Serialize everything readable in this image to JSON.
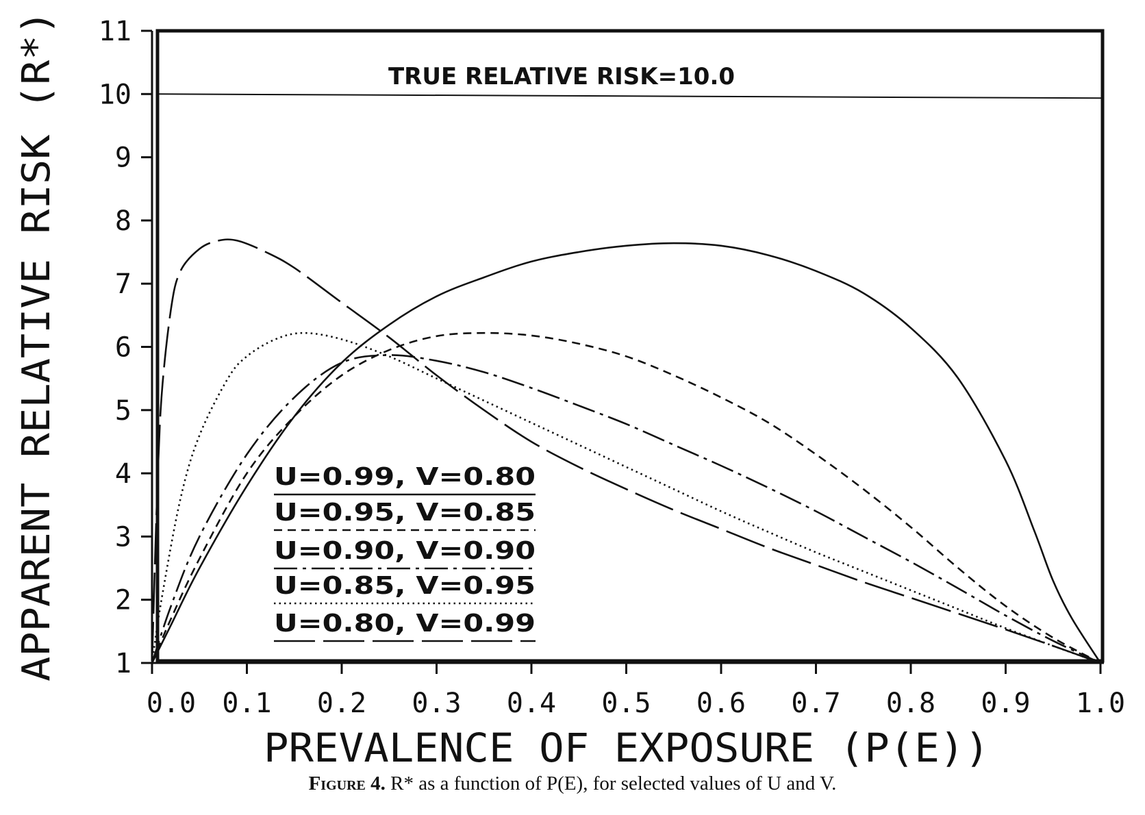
{
  "chart_data": {
    "type": "line",
    "title": "",
    "xlabel": "PREVALENCE OF EXPOSURE (P(E))",
    "ylabel": "APPARENT RELATIVE RISK (R*)",
    "xlim": [
      0.0,
      1.0
    ],
    "ylim": [
      1,
      11
    ],
    "xticks": [
      "0.0",
      "0.1",
      "0.2",
      "0.3",
      "0.4",
      "0.5",
      "0.6",
      "0.7",
      "0.8",
      "0.9",
      "1.0"
    ],
    "yticks": [
      "1",
      "2",
      "3",
      "4",
      "5",
      "6",
      "7",
      "8",
      "9",
      "10",
      "11"
    ],
    "reference_line": {
      "y": 10,
      "label": "TRUE RELATIVE RISK=10.0"
    },
    "grid": false,
    "legend_position": "lower-left",
    "series": [
      {
        "name": "U=0.99, V=0.80",
        "line_style": "solid",
        "x": [
          0,
          0.02,
          0.05,
          0.1,
          0.15,
          0.2,
          0.25,
          0.3,
          0.35,
          0.4,
          0.45,
          0.5,
          0.55,
          0.6,
          0.65,
          0.7,
          0.75,
          0.8,
          0.85,
          0.9,
          0.93,
          0.95,
          0.97,
          1.0
        ],
        "y": [
          1.0,
          1.6,
          2.5,
          3.8,
          4.9,
          5.75,
          6.35,
          6.8,
          7.1,
          7.35,
          7.5,
          7.6,
          7.64,
          7.6,
          7.45,
          7.2,
          6.85,
          6.3,
          5.5,
          4.2,
          3.1,
          2.3,
          1.7,
          1.0
        ]
      },
      {
        "name": "U=0.95, V=0.85",
        "line_style": "dashed",
        "x": [
          0,
          0.02,
          0.05,
          0.1,
          0.15,
          0.2,
          0.25,
          0.3,
          0.35,
          0.4,
          0.45,
          0.5,
          0.55,
          0.6,
          0.65,
          0.7,
          0.75,
          0.8,
          0.85,
          0.9,
          0.95,
          1.0
        ],
        "y": [
          1.0,
          1.7,
          2.65,
          4.0,
          4.9,
          5.55,
          5.95,
          6.17,
          6.22,
          6.18,
          6.05,
          5.85,
          5.55,
          5.2,
          4.8,
          4.3,
          3.75,
          3.15,
          2.5,
          1.9,
          1.4,
          1.0
        ]
      },
      {
        "name": "U=0.90, V=0.90",
        "line_style": "dash-dot",
        "x": [
          0,
          0.02,
          0.05,
          0.1,
          0.15,
          0.2,
          0.25,
          0.3,
          0.35,
          0.4,
          0.45,
          0.5,
          0.55,
          0.6,
          0.65,
          0.7,
          0.75,
          0.8,
          0.85,
          0.9,
          0.95,
          1.0
        ],
        "y": [
          1.0,
          1.9,
          3.0,
          4.3,
          5.2,
          5.75,
          5.87,
          5.78,
          5.6,
          5.35,
          5.07,
          4.78,
          4.45,
          4.12,
          3.77,
          3.4,
          3.0,
          2.6,
          2.18,
          1.75,
          1.35,
          1.0
        ]
      },
      {
        "name": "U=0.85, V=0.95",
        "line_style": "dotted",
        "x": [
          0,
          0.01,
          0.03,
          0.05,
          0.08,
          0.1,
          0.13,
          0.16,
          0.2,
          0.25,
          0.3,
          0.35,
          0.4,
          0.45,
          0.5,
          0.55,
          0.6,
          0.65,
          0.7,
          0.75,
          0.8,
          0.85,
          0.9,
          0.95,
          1.0
        ],
        "y": [
          1.0,
          2.0,
          3.6,
          4.6,
          5.5,
          5.85,
          6.12,
          6.22,
          6.12,
          5.85,
          5.5,
          5.15,
          4.8,
          4.45,
          4.1,
          3.75,
          3.4,
          3.07,
          2.75,
          2.45,
          2.15,
          1.85,
          1.55,
          1.27,
          1.0
        ]
      },
      {
        "name": "U=0.80, V=0.99",
        "line_style": "long-dash",
        "x": [
          0,
          0.005,
          0.01,
          0.02,
          0.03,
          0.05,
          0.07,
          0.09,
          0.12,
          0.15,
          0.2,
          0.25,
          0.3,
          0.35,
          0.4,
          0.45,
          0.5,
          0.55,
          0.6,
          0.65,
          0.7,
          0.75,
          0.8,
          0.85,
          0.9,
          0.95,
          1.0
        ],
        "y": [
          1.0,
          3.5,
          5.2,
          6.6,
          7.2,
          7.55,
          7.68,
          7.68,
          7.5,
          7.25,
          6.7,
          6.15,
          5.55,
          5.0,
          4.5,
          4.1,
          3.75,
          3.42,
          3.12,
          2.82,
          2.55,
          2.28,
          2.03,
          1.78,
          1.53,
          1.27,
          1.0
        ]
      }
    ]
  },
  "caption": {
    "label": "Figure 4.",
    "text": "R* as a function of P(E), for selected values of U and V."
  }
}
